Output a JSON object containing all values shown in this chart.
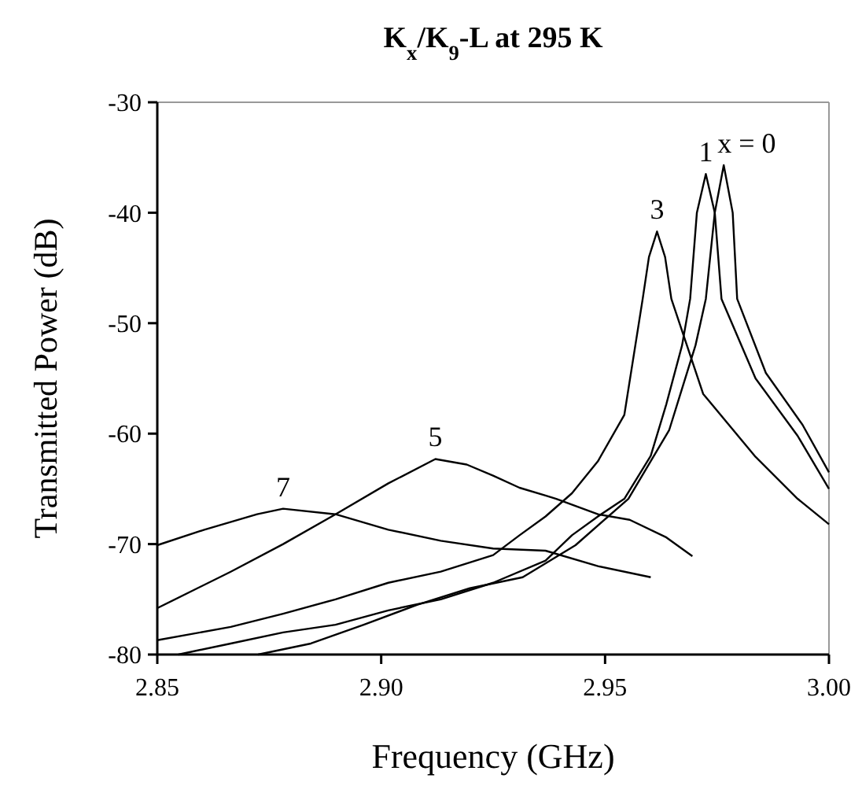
{
  "chart_data": {
    "type": "line",
    "title": "K$_{x}$/K$_{9}$-L at 295 K",
    "xlabel": "Frequency (GHz)",
    "ylabel": "Transmitted Power (dB)",
    "xlim": [
      2.85,
      3.0
    ],
    "xticks": [
      {
        "value": 2.85,
        "label": "2.85"
      },
      {
        "value": 2.9,
        "label": "2.90"
      },
      {
        "value": 2.95,
        "label": "2.95"
      },
      {
        "value": 3.0,
        "label": "3.00"
      }
    ],
    "ylim": [
      -80,
      -30
    ],
    "yticks": [
      -80,
      -70,
      -60,
      -50,
      -40,
      -30
    ],
    "grid": false,
    "series": [
      {
        "name": "x = 0",
        "color": "#000000",
        "x": [
          2.8725,
          2.8843,
          2.8961,
          2.908,
          2.9198,
          2.9316,
          2.9434,
          2.9552,
          2.9643,
          2.9702,
          2.9725,
          2.9745,
          2.9765,
          2.9785,
          2.9795,
          2.9859,
          2.9941,
          3.0
        ],
        "values": [
          -80,
          -79,
          -77.3,
          -75.5,
          -74,
          -73,
          -70.1,
          -65.9,
          -59.7,
          -52,
          -47.8,
          -40,
          -35.7,
          -40,
          -47.8,
          -54.5,
          -59.2,
          -63.5
        ]
      },
      {
        "name": "1",
        "color": "#000000",
        "x": [
          2.8547,
          2.8664,
          2.8781,
          2.8898,
          2.9016,
          2.9133,
          2.925,
          2.9367,
          2.9426,
          2.9484,
          2.9543,
          2.9602,
          2.9637,
          2.9672,
          2.969,
          2.9705,
          2.9725,
          2.9745,
          2.976,
          2.9836,
          2.993,
          3.0
        ],
        "values": [
          -80,
          -79,
          -78,
          -77.3,
          -76,
          -75,
          -73.5,
          -71.5,
          -69.2,
          -67.5,
          -65.9,
          -62,
          -57.3,
          -52,
          -47.8,
          -40,
          -36.5,
          -40,
          -47.8,
          -55,
          -60.2,
          -65
        ]
      },
      {
        "name": "3",
        "color": "#000000",
        "x": [
          2.85,
          2.8664,
          2.8781,
          2.8898,
          2.9016,
          2.9133,
          2.925,
          2.9309,
          2.9367,
          2.9426,
          2.9484,
          2.9543,
          2.9584,
          2.9598,
          2.9616,
          2.9634,
          2.9648,
          2.9719,
          2.9836,
          2.993,
          3.0
        ],
        "values": [
          -78.7,
          -77.5,
          -76.3,
          -75,
          -73.5,
          -72.5,
          -71,
          -69.2,
          -67.5,
          -65.4,
          -62.5,
          -58.3,
          -47.8,
          -44,
          -41.7,
          -44,
          -47.8,
          -56.4,
          -62.1,
          -65.9,
          -68.2
        ]
      },
      {
        "name": "5",
        "color": "#000000",
        "x": [
          2.85,
          2.8664,
          2.8781,
          2.8898,
          2.9016,
          2.9121,
          2.9191,
          2.925,
          2.9309,
          2.9367,
          2.9391,
          2.9484,
          2.9555,
          2.9637,
          2.9695
        ],
        "values": [
          -75.8,
          -72.5,
          -70,
          -67.3,
          -64.5,
          -62.3,
          -62.8,
          -63.8,
          -64.9,
          -65.6,
          -65.9,
          -67.3,
          -67.8,
          -69.4,
          -71.1
        ]
      },
      {
        "name": "7",
        "color": "#000000",
        "x": [
          2.85,
          2.8605,
          2.8723,
          2.8781,
          2.8898,
          2.9016,
          2.9133,
          2.925,
          2.9367,
          2.9484,
          2.9602
        ],
        "values": [
          -70.1,
          -68.7,
          -67.3,
          -66.8,
          -67.3,
          -68.7,
          -69.7,
          -70.4,
          -70.6,
          -72,
          -73
        ]
      }
    ]
  }
}
